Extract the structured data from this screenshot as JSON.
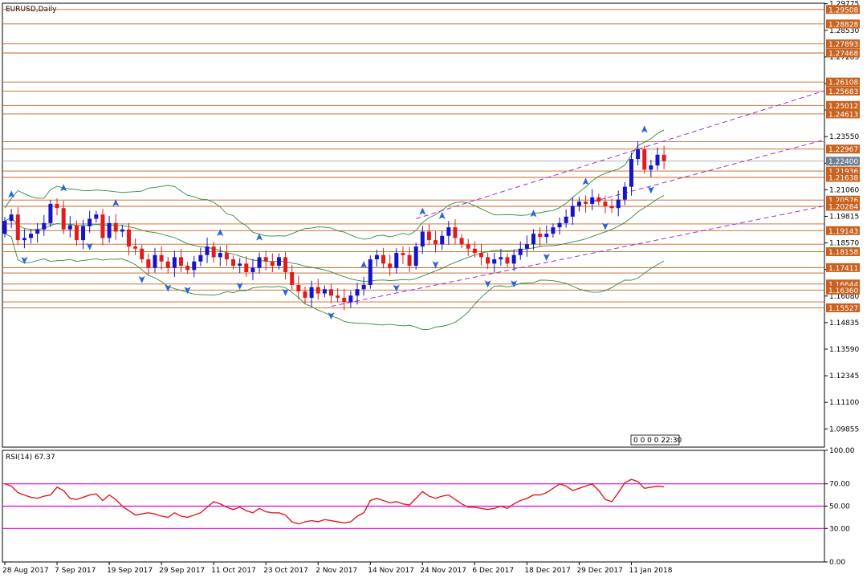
{
  "chart_data": {
    "type": "candlestick",
    "title": "EURUSD,Daily",
    "price_ylim": [
      1.09,
      1.298
    ],
    "y_ticks": [
      "1.29775",
      "1.28530",
      "1.27285",
      "1.26040",
      "1.24795",
      "1.23550",
      "1.22305",
      "1.21060",
      "1.19815",
      "1.18570",
      "1.17325",
      "1.16080",
      "1.14835",
      "1.13590",
      "1.12345",
      "1.11100",
      "1.09855"
    ],
    "x_labels": [
      "28 Aug 2017",
      "7 Sep 2017",
      "19 Sep 2017",
      "29 Sep 2017",
      "11 Oct 2017",
      "23 Oct 2017",
      "2 Nov 2017",
      "14 Nov 2017",
      "24 Nov 2017",
      "6 Dec 2017",
      "18 Dec 2017",
      "29 Dec 2017",
      "11 Jan 2018"
    ],
    "x_label_index": [
      0,
      8,
      16,
      24,
      32,
      40,
      48,
      56,
      64,
      72,
      80,
      88,
      96
    ],
    "current_price": "1.22400",
    "countdown": "0 0 0 0 22:30",
    "level_labels": [
      "1.29508",
      "1.28828",
      "1.27893",
      "1.27468",
      "1.26108",
      "1.25683",
      "1.25012",
      "1.24613",
      "1.22967",
      "1.21936",
      "1.21638",
      "1.20576",
      "1.20284",
      "1.19143",
      "1.18158",
      "1.17411",
      "1.16644",
      "1.16360",
      "1.15527"
    ],
    "levels": [
      1.29508,
      1.28828,
      1.27893,
      1.27468,
      1.26108,
      1.25683,
      1.25012,
      1.24613,
      1.2331,
      1.22967,
      1.21936,
      1.21638,
      1.20576,
      1.20284,
      1.1946,
      1.19143,
      1.1851,
      1.18158,
      1.17411,
      1.17161,
      1.16644,
      1.1636,
      1.15806,
      1.15527
    ],
    "close": [
      1.196,
      1.199,
      1.187,
      1.188,
      1.19,
      1.192,
      1.195,
      1.204,
      1.202,
      1.192,
      1.194,
      1.187,
      1.1935,
      1.197,
      1.199,
      1.188,
      1.195,
      1.191,
      1.192,
      1.184,
      1.183,
      1.178,
      1.174,
      1.18,
      1.177,
      1.174,
      1.179,
      1.175,
      1.173,
      1.177,
      1.18,
      1.184,
      1.179,
      1.181,
      1.178,
      1.175,
      1.176,
      1.172,
      1.174,
      1.179,
      1.177,
      1.175,
      1.179,
      1.172,
      1.166,
      1.163,
      1.16,
      1.165,
      1.162,
      1.164,
      1.161,
      1.16,
      1.158,
      1.161,
      1.164,
      1.166,
      1.178,
      1.18,
      1.176,
      1.174,
      1.181,
      1.18,
      1.175,
      1.184,
      1.191,
      1.187,
      1.185,
      1.189,
      1.193,
      1.188,
      1.185,
      1.183,
      1.181,
      1.179,
      1.176,
      1.178,
      1.179,
      1.176,
      1.18,
      1.183,
      1.185,
      1.19,
      1.1885,
      1.19,
      1.193,
      1.195,
      1.198,
      1.203,
      1.205,
      1.204,
      1.207,
      1.205,
      1.203,
      1.202,
      1.206,
      1.212,
      1.225,
      1.2295,
      1.22,
      1.222,
      1.227,
      1.224
    ],
    "rsi_label": "RSI(14) 67.37",
    "rsi_ylim": [
      0,
      100
    ],
    "rsi_ticks": [
      "100.00",
      "70.00",
      "50.00",
      "30.00",
      "0.00"
    ],
    "rsi_levels": [
      70,
      50,
      30
    ],
    "rsi": [
      70,
      68,
      62,
      60,
      58,
      57,
      59,
      60,
      67,
      64,
      57,
      56,
      58,
      60,
      61,
      55,
      60,
      56,
      50,
      46,
      42,
      43,
      44,
      43,
      41,
      40,
      44,
      41,
      40,
      42,
      44,
      49,
      54,
      52,
      49,
      47,
      49,
      46,
      44,
      48,
      45,
      44,
      44,
      42,
      36,
      34,
      36,
      37,
      36,
      38,
      37,
      36,
      35,
      36,
      41,
      44,
      55,
      57,
      55,
      53,
      54,
      52,
      51,
      57,
      63,
      59,
      57,
      59,
      60,
      56,
      52,
      49,
      49,
      48,
      47,
      48,
      50,
      48,
      52,
      55,
      57,
      60,
      60,
      62,
      66,
      70,
      68,
      64,
      66,
      68,
      70,
      64,
      56,
      54,
      62,
      71,
      74,
      72,
      66,
      67,
      68,
      67.37
    ],
    "colors": {
      "bull": "#1414c8",
      "bear": "#e01c1c",
      "level_line": "#c8621e",
      "level_label_bg": "#c8621e",
      "bands": "#2e8b3a",
      "trend": "#a02bd8",
      "rsi_line": "#e01c1c",
      "rsi_levels": "#e000e0",
      "arrow": "#2a63d8",
      "grid_axis": "#000000"
    }
  }
}
